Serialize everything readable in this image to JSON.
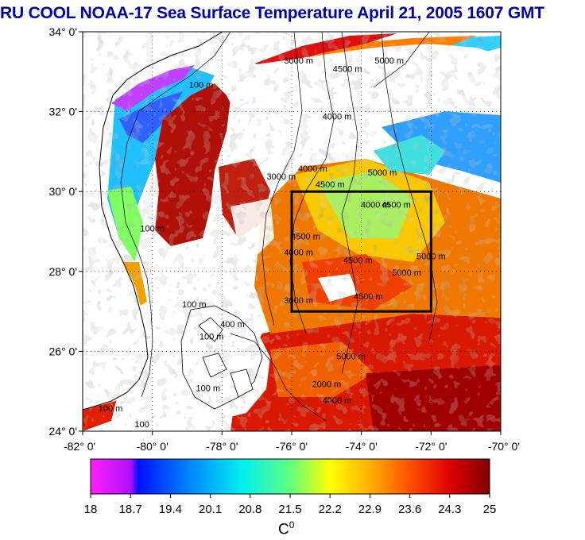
{
  "title": "RU COOL  NOAA-17 Sea Surface Temperature April 21, 2005 1607 GMT",
  "map": {
    "lon_range": [
      -82,
      -70
    ],
    "lat_range": [
      24,
      34
    ],
    "lat_ticks": [
      "34° 0'",
      "32° 0'",
      "30° 0'",
      "28° 0'",
      "26° 0'",
      "24° 0'"
    ],
    "lon_ticks": [
      "-82° 0'",
      "-80° 0'",
      "-78° 0'",
      "-76° 0'",
      "-74° 0'",
      "-72° 0'",
      "-70° 0'"
    ],
    "study_box": {
      "lon": [
        -76,
        -72
      ],
      "lat": [
        27,
        30
      ]
    },
    "contour_labels": [
      {
        "text": "100 m",
        "lon": -78.6,
        "lat": 32.6
      },
      {
        "text": "100 m",
        "lon": -80.0,
        "lat": 29.0
      },
      {
        "text": "100 m",
        "lon": -78.8,
        "lat": 27.1
      },
      {
        "text": "100 m",
        "lon": -78.3,
        "lat": 26.3
      },
      {
        "text": "100 m",
        "lon": -78.4,
        "lat": 25.0
      },
      {
        "text": "100 m",
        "lon": -81.2,
        "lat": 24.5
      },
      {
        "text": "100",
        "lon": -80.3,
        "lat": 24.1
      },
      {
        "text": "400 m",
        "lon": -77.7,
        "lat": 26.6
      },
      {
        "text": "3000 m",
        "lon": -75.8,
        "lat": 33.2
      },
      {
        "text": "4500 m",
        "lon": -74.4,
        "lat": 33.0
      },
      {
        "text": "5000 m",
        "lon": -73.2,
        "lat": 33.2
      },
      {
        "text": "4000 m",
        "lon": -74.7,
        "lat": 31.8
      },
      {
        "text": "3000 m",
        "lon": -76.3,
        "lat": 30.3
      },
      {
        "text": "4000 m",
        "lon": -75.4,
        "lat": 30.5
      },
      {
        "text": "4500 m",
        "lon": -74.9,
        "lat": 30.1
      },
      {
        "text": "5000 m",
        "lon": -73.4,
        "lat": 30.4
      },
      {
        "text": "4000 m",
        "lon": -73.6,
        "lat": 29.6
      },
      {
        "text": "4500 m",
        "lon": -73.0,
        "lat": 29.6
      },
      {
        "text": "4500 m",
        "lon": -75.6,
        "lat": 28.8
      },
      {
        "text": "4000 m",
        "lon": -75.8,
        "lat": 28.4
      },
      {
        "text": "4500 m",
        "lon": -74.1,
        "lat": 28.2
      },
      {
        "text": "5000 m",
        "lon": -72.7,
        "lat": 27.9
      },
      {
        "text": "5000 m",
        "lon": -72.0,
        "lat": 28.3
      },
      {
        "text": "4500 m",
        "lon": -73.8,
        "lat": 27.3
      },
      {
        "text": "3000 m",
        "lon": -75.8,
        "lat": 27.2
      },
      {
        "text": "5000 m",
        "lon": -74.3,
        "lat": 25.8
      },
      {
        "text": "2000 m",
        "lon": -75.0,
        "lat": 25.1
      },
      {
        "text": "4000 m",
        "lon": -74.7,
        "lat": 24.7
      }
    ]
  },
  "colorbar": {
    "min": 18,
    "max": 25,
    "tick_labels": [
      "18",
      "18.7",
      "19.4",
      "20.1",
      "20.8",
      "21.5",
      "22.2",
      "22.9",
      "23.6",
      "24.3",
      "25"
    ],
    "unit": "C",
    "unit_sup": "0"
  },
  "colors": {
    "title": "#0000a8",
    "land": "#ffffff",
    "cloud": "#ffffff",
    "study_box": "#000000"
  }
}
